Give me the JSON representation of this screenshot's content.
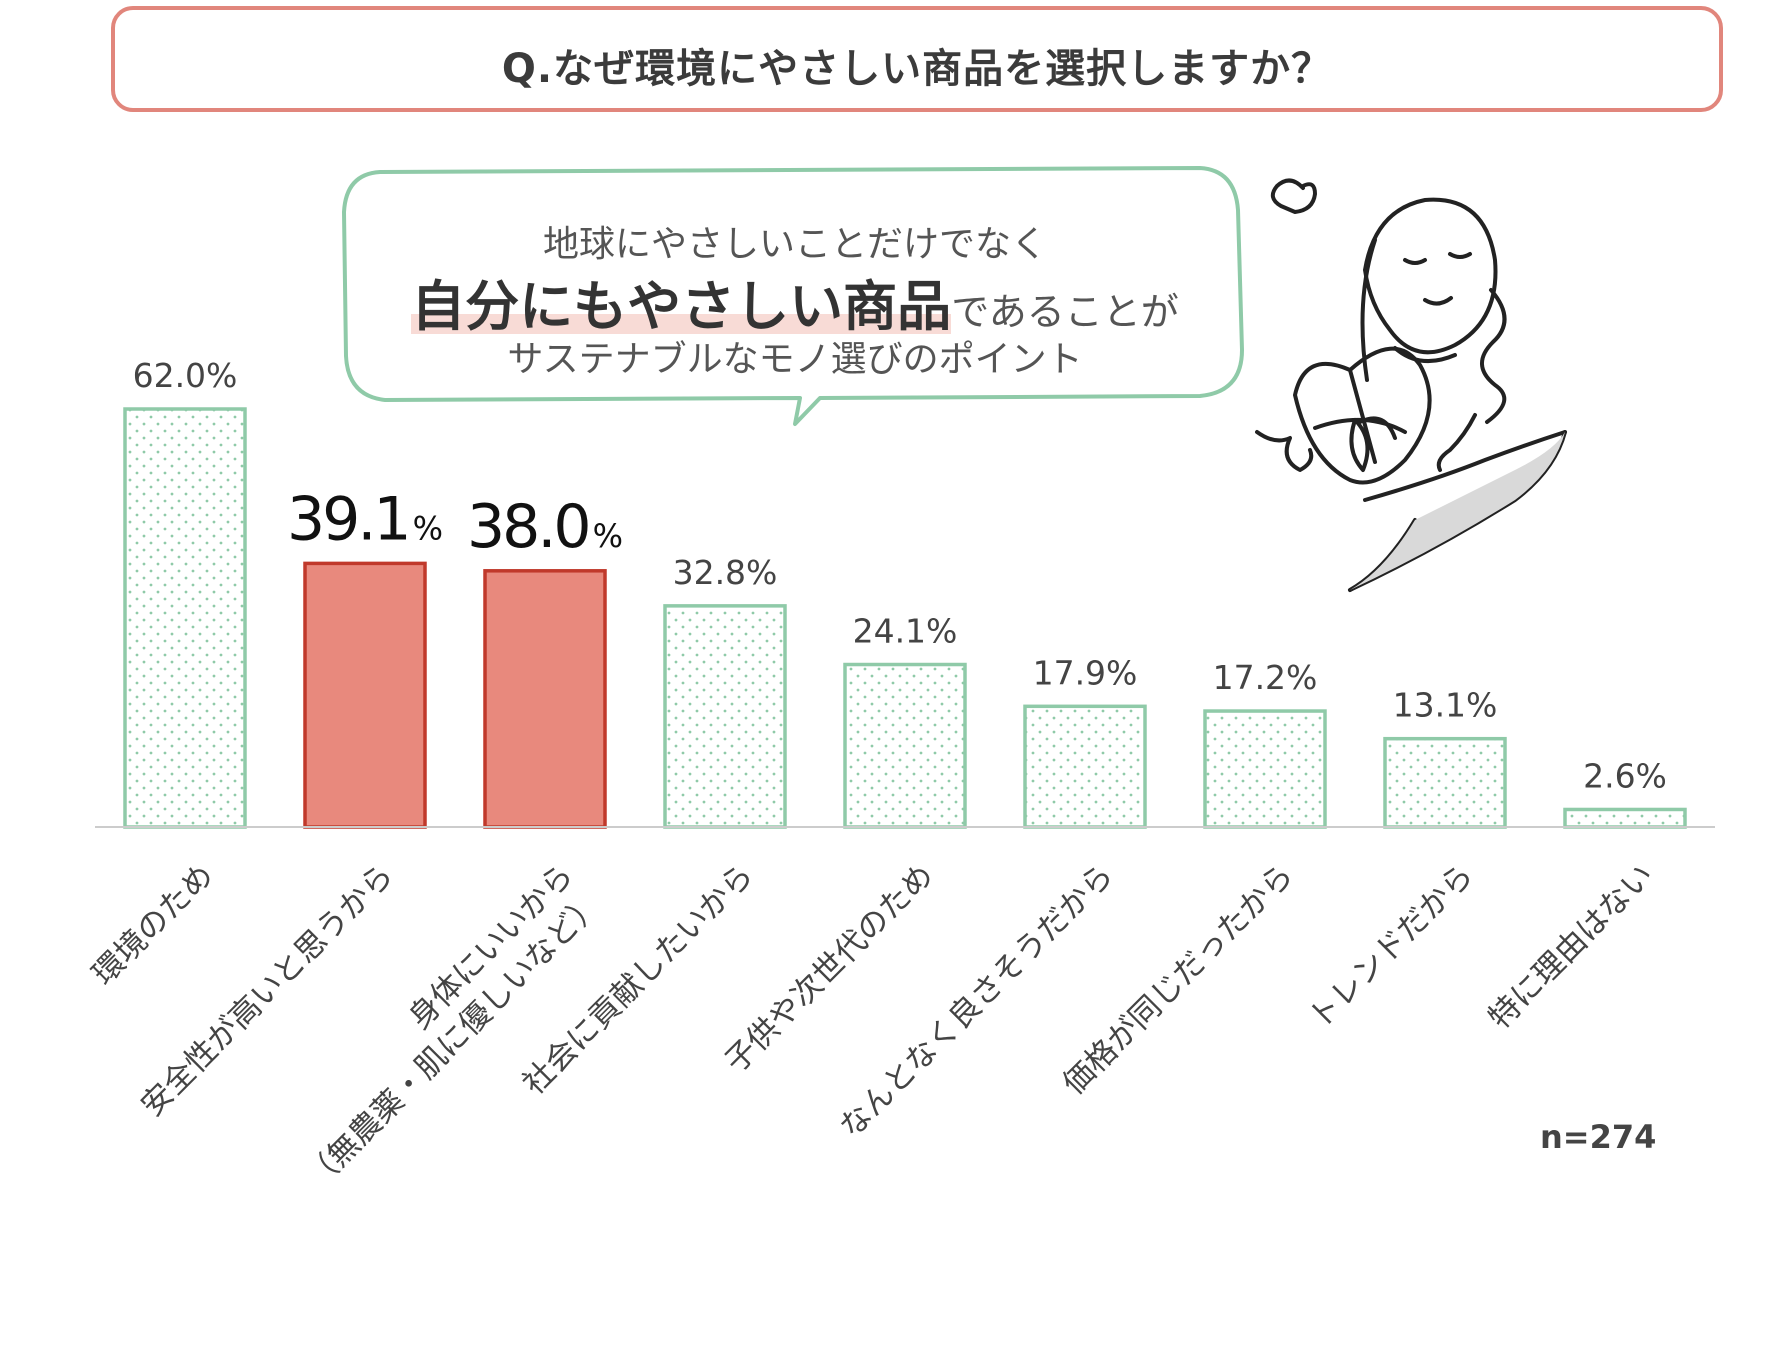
{
  "title": "Q.なぜ環境にやさしい商品を選択しますか？",
  "callout": {
    "line1": "地球にやさしいことだけでなく",
    "line2_emphasis": "自分にもやさしい商品",
    "line2_rest": "であることが",
    "line3": "サステナブルなモノ選びのポイント"
  },
  "sample_size": "n=274",
  "colors": {
    "highlight_fill": "#e8897d",
    "highlight_stroke": "#c0392b",
    "normal_stroke": "#8fcaa8",
    "dot": "#8fcaa8",
    "title_border": "#e1867c"
  },
  "chart_data": {
    "type": "bar",
    "unit": "%",
    "ylim": [
      0,
      62
    ],
    "grid": false,
    "categories": [
      [
        "環境のため"
      ],
      [
        "安全性が高いと思うから"
      ],
      [
        "身体にいいから",
        "（無農薬・肌に優しいなど）"
      ],
      [
        "社会に貢献したいから"
      ],
      [
        "子供や次世代のため"
      ],
      [
        "なんとなく良さそうだから"
      ],
      [
        "価格が同じだったから"
      ],
      [
        "トレンドだから"
      ],
      [
        "特に理由はない"
      ]
    ],
    "values": [
      62.0,
      39.1,
      38.0,
      32.8,
      24.1,
      17.9,
      17.2,
      13.1,
      2.6
    ],
    "value_labels": [
      "62.0%",
      "39.1",
      "38.0",
      "32.8%",
      "24.1%",
      "17.9%",
      "17.2%",
      "13.1%",
      "2.6%"
    ],
    "highlighted": [
      false,
      true,
      true,
      false,
      false,
      false,
      false,
      false,
      false
    ],
    "title": "",
    "xlabel": "",
    "ylabel": ""
  }
}
